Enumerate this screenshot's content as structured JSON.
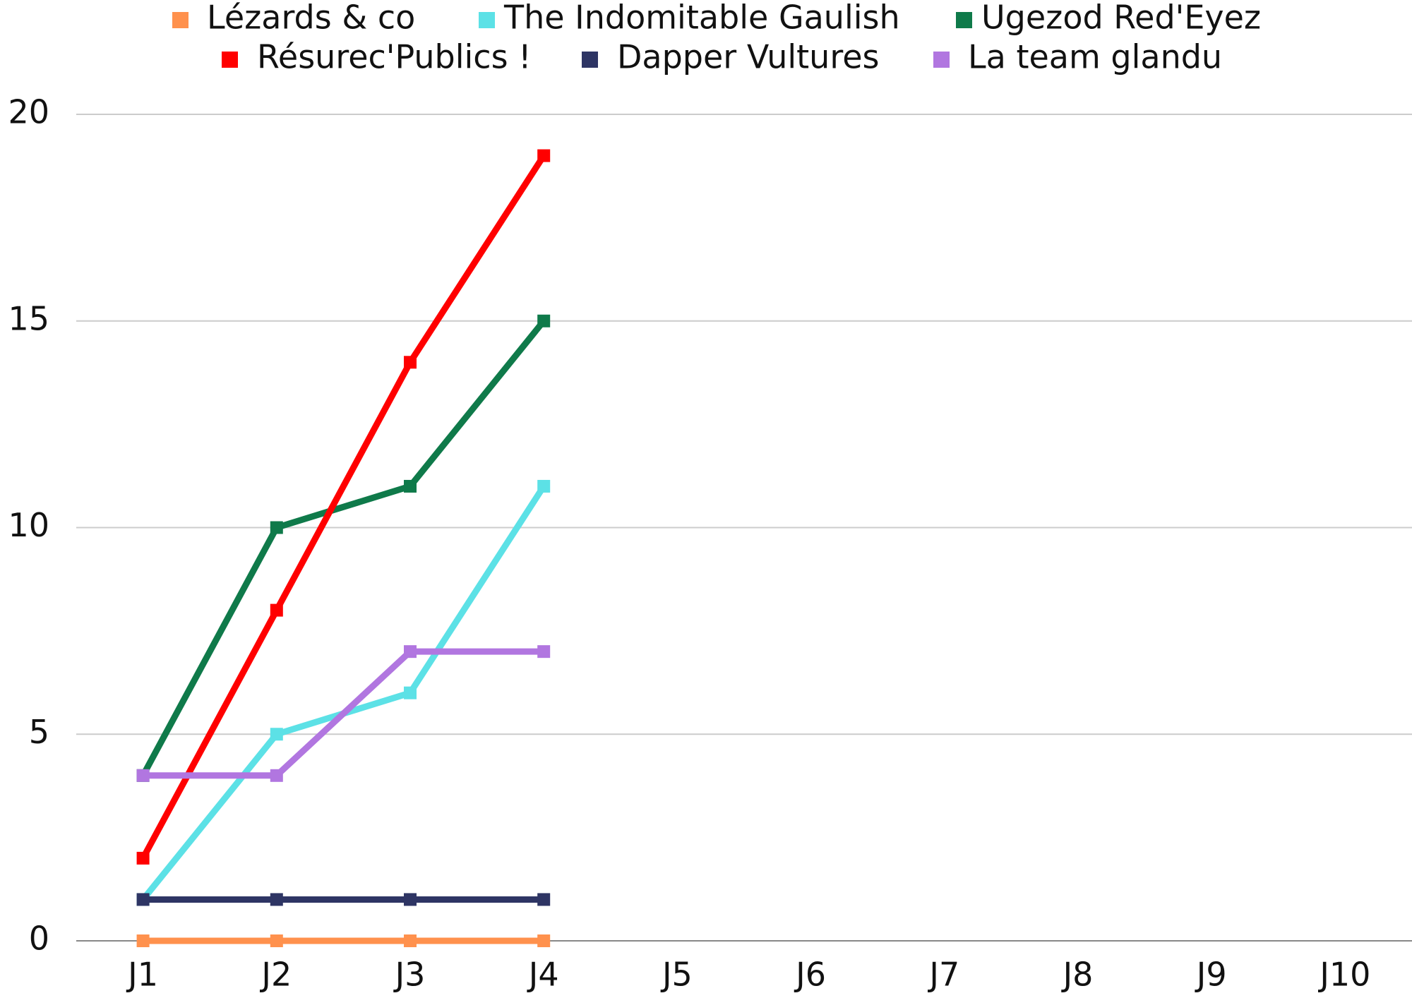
{
  "chart_data": {
    "type": "line",
    "categories": [
      "J1",
      "J2",
      "J3",
      "J4",
      "J5",
      "J6",
      "J7",
      "J8",
      "J9",
      "J10"
    ],
    "series": [
      {
        "name": "Lézards & co",
        "color": "#ff914d",
        "values": [
          0,
          0,
          0,
          0,
          null,
          null,
          null,
          null,
          null,
          null
        ]
      },
      {
        "name": "The Indomitable Gaulish",
        "color": "#5ce1e6",
        "values": [
          1,
          5,
          6,
          11,
          null,
          null,
          null,
          null,
          null,
          null
        ]
      },
      {
        "name": "Ugezod Red'Eyez",
        "color": "#0f7a4a",
        "values": [
          4,
          10,
          11,
          15,
          null,
          null,
          null,
          null,
          null,
          null
        ]
      },
      {
        "name": "Résurec'Publics !",
        "color": "#ff0000",
        "values": [
          2,
          8,
          14,
          19,
          null,
          null,
          null,
          null,
          null,
          null
        ]
      },
      {
        "name": "Dapper Vultures",
        "color": "#2e3564",
        "values": [
          1,
          1,
          1,
          1,
          null,
          null,
          null,
          null,
          null,
          null
        ]
      },
      {
        "name": "La team glandu",
        "color": "#b176e0",
        "values": [
          4,
          4,
          7,
          7,
          null,
          null,
          null,
          null,
          null,
          null
        ]
      }
    ],
    "ylim": [
      0,
      20
    ],
    "yticks": [
      0,
      5,
      10,
      15,
      20
    ],
    "grid": true,
    "legend": "top"
  }
}
